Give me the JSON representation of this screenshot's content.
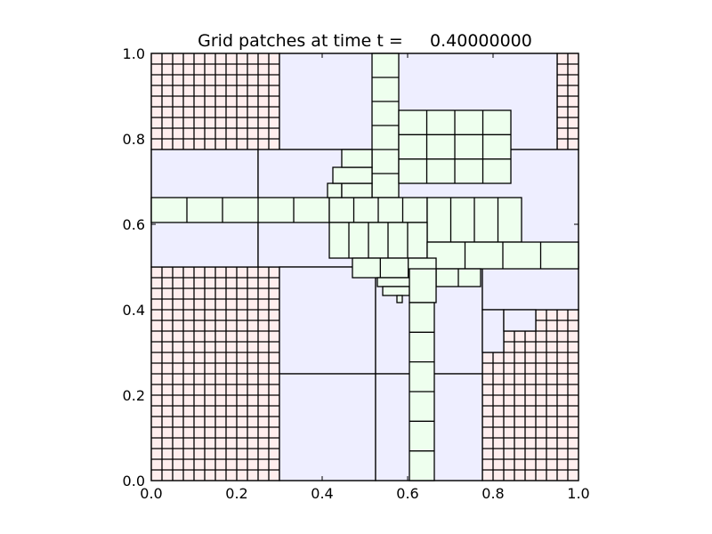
{
  "chart_data": {
    "type": "heatmap",
    "title": "Grid patches at time t =     0.40000000",
    "xlabel": "",
    "ylabel": "",
    "xlim": [
      0.0,
      1.0
    ],
    "ylim": [
      0.0,
      1.0
    ],
    "xticks": [
      "0.0",
      "0.2",
      "0.4",
      "0.6",
      "0.8",
      "1.0"
    ],
    "xtick_values": [
      0.0,
      0.2,
      0.4,
      0.6,
      0.8,
      1.0
    ],
    "yticks": [
      "0.0",
      "0.2",
      "0.4",
      "0.6",
      "0.8",
      "1.0"
    ],
    "ytick_values": [
      0.0,
      0.2,
      0.4,
      0.6,
      0.8,
      1.0
    ],
    "grid": false,
    "colors": {
      "level1": "#ffeeee",
      "level2": "#eeeeff",
      "level3": "#eeffee",
      "edge": "#000000"
    },
    "level1_patches": [
      {
        "x0": 0.0,
        "x1": 0.3,
        "y0": 0.0,
        "y1": 0.5,
        "nx": 12,
        "ny": 20
      },
      {
        "x0": 0.0,
        "x1": 0.3,
        "y0": 0.775,
        "y1": 1.0,
        "nx": 12,
        "ny": 9
      },
      {
        "x0": 0.775,
        "x1": 1.0,
        "y0": 0.0,
        "y1": 0.4,
        "nx": 9,
        "ny": 16
      },
      {
        "x0": 0.95,
        "x1": 1.0,
        "y0": 0.775,
        "y1": 1.0,
        "nx": 2,
        "ny": 9
      }
    ],
    "level2_patches": [
      {
        "x0": 0.3,
        "x1": 0.95,
        "y0": 0.775,
        "y1": 1.0
      },
      {
        "x0": 0.0,
        "x1": 0.25,
        "y0": 0.5,
        "y1": 0.775
      },
      {
        "x0": 0.25,
        "x1": 1.0,
        "y0": 0.5,
        "y1": 0.775
      },
      {
        "x0": 0.3,
        "x1": 0.525,
        "y0": 0.25,
        "y1": 0.5
      },
      {
        "x0": 0.525,
        "x1": 0.775,
        "y0": 0.25,
        "y1": 0.5
      },
      {
        "x0": 0.3,
        "x1": 0.525,
        "y0": 0.0,
        "y1": 0.25
      },
      {
        "x0": 0.525,
        "x1": 0.775,
        "y0": 0.0,
        "y1": 0.25
      },
      {
        "x0": 0.775,
        "x1": 1.0,
        "y0": 0.4,
        "y1": 0.5
      },
      {
        "x0": 0.775,
        "x1": 0.825,
        "y0": 0.3,
        "y1": 0.4
      },
      {
        "x0": 0.825,
        "x1": 0.9,
        "y0": 0.35,
        "y1": 0.4
      }
    ],
    "level3_patches": [
      {
        "x0": 0.0,
        "x1": 0.4167,
        "y0": 0.6042,
        "y1": 0.6625,
        "nx": 5,
        "ny": 1
      },
      {
        "x0": 0.5167,
        "x1": 0.5792,
        "y0": 0.6625,
        "y1": 1.0,
        "nx": 1,
        "ny": 6
      },
      {
        "x0": 0.5792,
        "x1": 0.8417,
        "y0": 0.6958,
        "y1": 0.8667,
        "nx": 4,
        "ny": 3
      },
      {
        "x0": 0.4167,
        "x1": 0.6458,
        "y0": 0.6042,
        "y1": 0.6625,
        "nx": 4,
        "ny": 1
      },
      {
        "x0": 0.4125,
        "x1": 0.4458,
        "y0": 0.6625,
        "y1": 0.6958,
        "nx": 1,
        "ny": 1
      },
      {
        "x0": 0.4458,
        "x1": 0.5167,
        "y0": 0.6625,
        "y1": 0.6958,
        "nx": 1,
        "ny": 1
      },
      {
        "x0": 0.425,
        "x1": 0.5167,
        "y0": 0.6958,
        "y1": 0.7333,
        "nx": 1,
        "ny": 1
      },
      {
        "x0": 0.4458,
        "x1": 0.5167,
        "y0": 0.7333,
        "y1": 0.775,
        "nx": 1,
        "ny": 1
      },
      {
        "x0": 0.6458,
        "x1": 0.8667,
        "y0": 0.5583,
        "y1": 0.6625,
        "nx": 4,
        "ny": 1
      },
      {
        "x0": 0.4167,
        "x1": 0.6458,
        "y0": 0.5208,
        "y1": 0.6042,
        "nx": 5,
        "ny": 1
      },
      {
        "x0": 0.6458,
        "x1": 1.0,
        "y0": 0.4958,
        "y1": 0.5583,
        "nx": 4,
        "ny": 1
      },
      {
        "x0": 0.4708,
        "x1": 0.6667,
        "y0": 0.475,
        "y1": 0.5208,
        "nx": 3,
        "ny": 1
      },
      {
        "x0": 0.6667,
        "x1": 0.7708,
        "y0": 0.4542,
        "y1": 0.4958,
        "nx": 2,
        "ny": 1
      },
      {
        "x0": 0.5292,
        "x1": 0.625,
        "y0": 0.4542,
        "y1": 0.475,
        "nx": 1,
        "ny": 1
      },
      {
        "x0": 0.5417,
        "x1": 0.6042,
        "y0": 0.4333,
        "y1": 0.4542,
        "nx": 1,
        "ny": 1
      },
      {
        "x0": 0.575,
        "x1": 0.5875,
        "y0": 0.4167,
        "y1": 0.4333,
        "nx": 1,
        "ny": 1
      },
      {
        "x0": 0.6042,
        "x1": 0.6667,
        "y0": 0.4167,
        "y1": 0.4958,
        "nx": 1,
        "ny": 1
      },
      {
        "x0": 0.6042,
        "x1": 0.6625,
        "y0": 0.0,
        "y1": 0.4167,
        "nx": 1,
        "ny": 6
      }
    ]
  }
}
